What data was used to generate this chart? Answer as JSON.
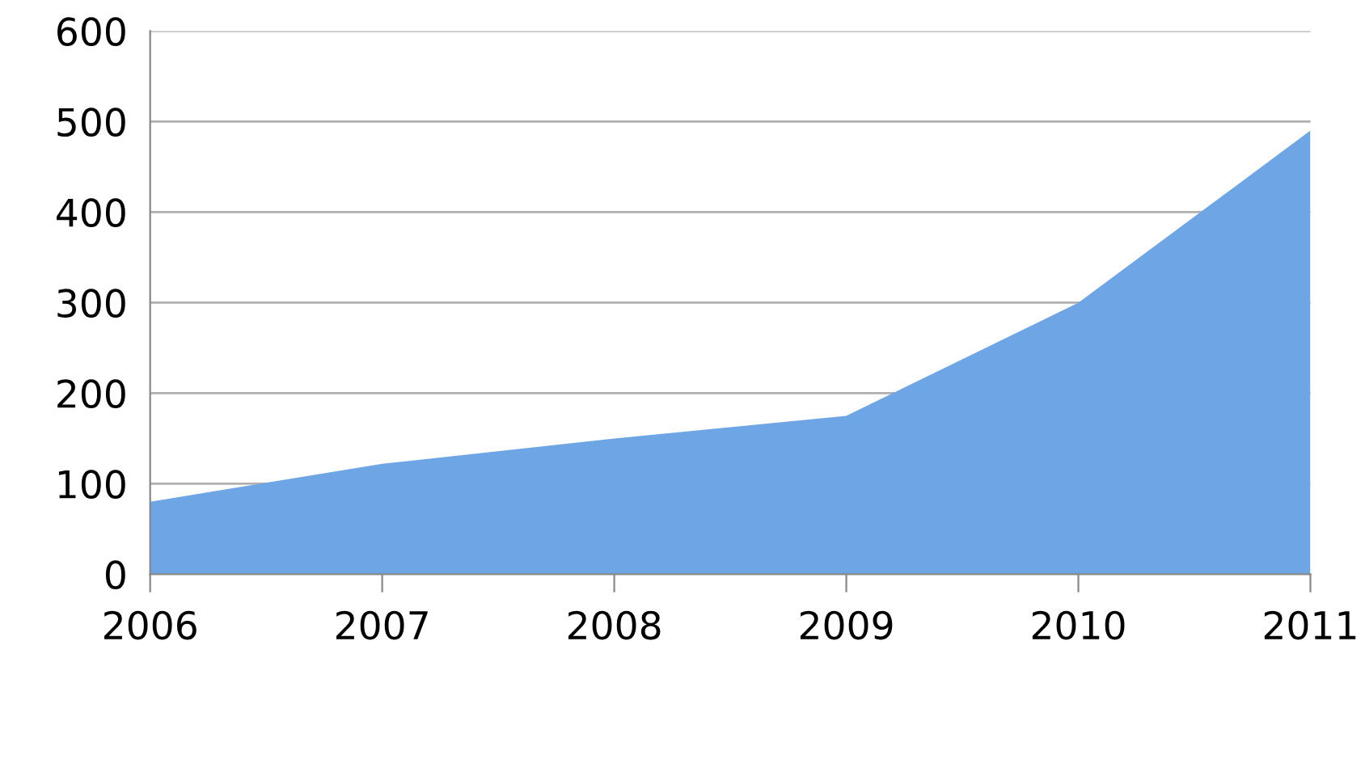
{
  "chart_data": {
    "type": "area",
    "categories": [
      "2006",
      "2007",
      "2008",
      "2009",
      "2010",
      "2011"
    ],
    "series": [
      {
        "color": "#6ea5e4",
        "values": [
          80,
          122,
          150,
          175,
          300,
          490
        ]
      }
    ],
    "ylim": [
      0,
      600
    ],
    "yticks": [
      0,
      100,
      200,
      300,
      400,
      500,
      600
    ],
    "grid": "y",
    "legend": false
  }
}
